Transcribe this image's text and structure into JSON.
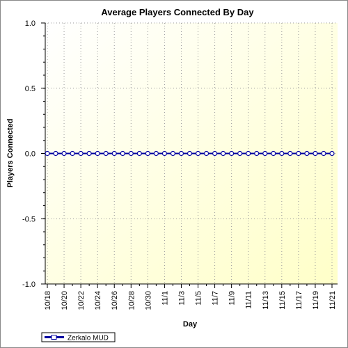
{
  "chart_data": {
    "type": "line",
    "title": "Average Players Connected By Day",
    "x_label": "Day",
    "y_label": "Players Connected",
    "categories": [
      "10/18",
      null,
      "10/20",
      null,
      "10/22",
      null,
      "10/24",
      null,
      "10/26",
      null,
      "10/28",
      null,
      "10/30",
      null,
      "11/1",
      null,
      "11/3",
      null,
      "11/5",
      null,
      "11/7",
      null,
      "11/9",
      null,
      "11/11",
      null,
      "11/13",
      null,
      "11/15",
      null,
      "11/17",
      null,
      "11/19",
      null,
      "11/21"
    ],
    "series": [
      {
        "name": "Zerkalo MUD",
        "color": "#0000a0",
        "values": [
          0,
          0,
          0,
          0,
          0,
          0,
          0,
          0,
          0,
          0,
          0,
          0,
          0,
          0,
          0,
          0,
          0,
          0,
          0,
          0,
          0,
          0,
          0,
          0,
          0,
          0,
          0,
          0,
          0,
          0,
          0,
          0,
          0,
          0,
          0
        ]
      }
    ],
    "ylim": [
      -1,
      1
    ],
    "yticks": [
      {
        "value": -1,
        "label": "-1.0"
      },
      -0.5,
      {
        "value": 0,
        "label": "0.0"
      },
      0.5,
      {
        "value": 1,
        "label": "1.0"
      }
    ],
    "grid": true
  }
}
